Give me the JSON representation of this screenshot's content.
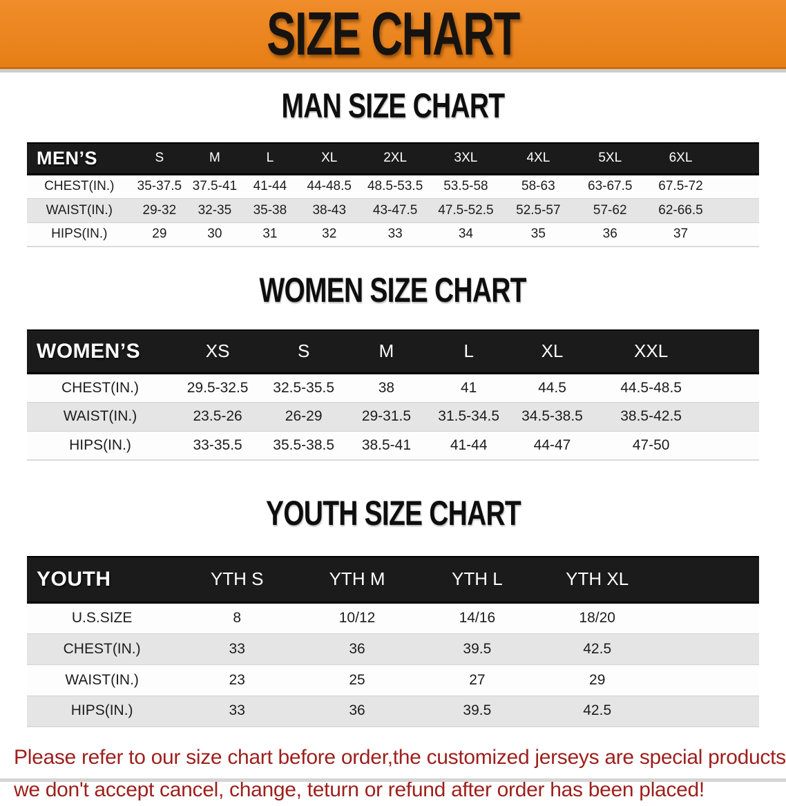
{
  "banner": {
    "title": "SIZE CHART",
    "bg_color": "#e9831f"
  },
  "sections": [
    {
      "heading": "MAN SIZE CHART",
      "header_label": "MEN’S",
      "columns": [
        "S",
        "M",
        "L",
        "XL",
        "2XL",
        "3XL",
        "4XL",
        "5XL",
        "6XL"
      ],
      "rows": [
        {
          "label": "CHEST(IN.)",
          "values": [
            "35-37.5",
            "37.5-41",
            "41-44",
            "44-48.5",
            "48.5-53.5",
            "53.5-58",
            "58-63",
            "63-67.5",
            "67.5-72"
          ]
        },
        {
          "label": "WAIST(IN.)",
          "values": [
            "29-32",
            "32-35",
            "35-38",
            "38-43",
            "43-47.5",
            "47.5-52.5",
            "52.5-57",
            "57-62",
            "62-66.5"
          ]
        },
        {
          "label": "HIPS(IN.)",
          "values": [
            "29",
            "30",
            "31",
            "32",
            "33",
            "34",
            "35",
            "36",
            "37"
          ]
        }
      ]
    },
    {
      "heading": "WOMEN SIZE CHART",
      "header_label": "WOMEN’S",
      "columns": [
        "XS",
        "S",
        "M",
        "L",
        "XL",
        "XXL"
      ],
      "rows": [
        {
          "label": "CHEST(IN.)",
          "values": [
            "29.5-32.5",
            "32.5-35.5",
            "38",
            "41",
            "44.5",
            "44.5-48.5"
          ]
        },
        {
          "label": "WAIST(IN.)",
          "values": [
            "23.5-26",
            "26-29",
            "29-31.5",
            "31.5-34.5",
            "34.5-38.5",
            "38.5-42.5"
          ]
        },
        {
          "label": "HIPS(IN.)",
          "values": [
            "33-35.5",
            "35.5-38.5",
            "38.5-41",
            "41-44",
            "44-47",
            "47-50"
          ]
        }
      ]
    },
    {
      "heading": "YOUTH SIZE CHART",
      "header_label": "YOUTH",
      "columns": [
        "YTH S",
        "YTH M",
        "YTH L",
        "YTH XL"
      ],
      "rows": [
        {
          "label": "U.S.SIZE",
          "values": [
            "8",
            "10/12",
            "14/16",
            "18/20"
          ]
        },
        {
          "label": "CHEST(IN.)",
          "values": [
            "33",
            "36",
            "39.5",
            "42.5"
          ]
        },
        {
          "label": "WAIST(IN.)",
          "values": [
            "23",
            "25",
            "27",
            "29"
          ]
        },
        {
          "label": "HIPS(IN.)",
          "values": [
            "33",
            "36",
            "39.5",
            "42.5"
          ]
        }
      ]
    }
  ],
  "disclaimer": {
    "line1": "Please refer to our size chart before order,the customized jerseys are special products,",
    "line2": "we don't accept cancel, change, teturn or refund after order has been placed!",
    "color": "#9d201c"
  },
  "colors": {
    "banner_orange": "#e9831f",
    "table_header_black": "#1b1b1b",
    "row_gray": "#e5e5e5",
    "disclaimer_red": "#9d201c"
  }
}
